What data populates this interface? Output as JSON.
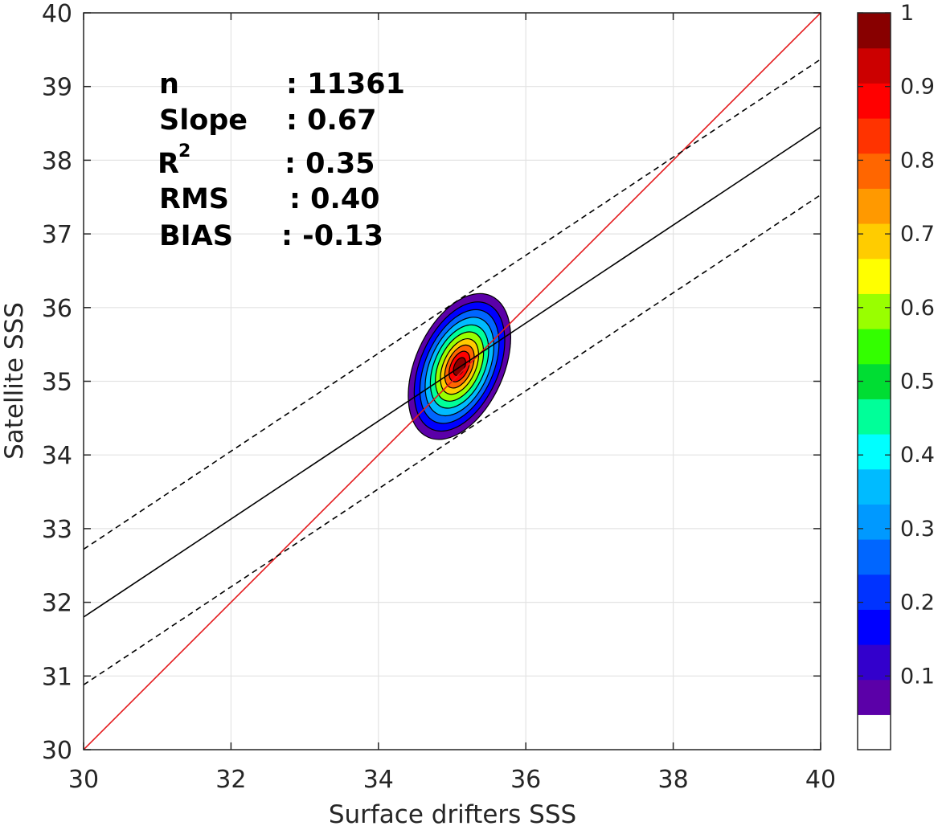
{
  "chart_data": {
    "type": "contour",
    "xlabel": "Surface drifters SSS",
    "ylabel": "Satellite SSS",
    "xlim": [
      30,
      40
    ],
    "ylim": [
      30,
      40
    ],
    "xticks": [
      "30",
      "32",
      "34",
      "36",
      "38",
      "40"
    ],
    "yticks": [
      "30",
      "31",
      "32",
      "33",
      "34",
      "35",
      "36",
      "37",
      "38",
      "39",
      "40"
    ],
    "grid": true,
    "stats": [
      {
        "label": "n",
        "value": ": 11361"
      },
      {
        "label": "Slope",
        "value": ": 0.67"
      },
      {
        "label": "R",
        "sup": "2",
        "value": ": 0.35"
      },
      {
        "label": "RMS",
        "value": ": 0.40"
      },
      {
        "label": "BIAS",
        "value": ": -0.13"
      }
    ],
    "lines": [
      {
        "name": "one-to-one",
        "color": "#e41a1c",
        "style": "solid",
        "x": [
          30,
          40
        ],
        "y": [
          30,
          40
        ]
      },
      {
        "name": "regression",
        "color": "#000000",
        "style": "solid",
        "x": [
          30,
          40
        ],
        "y": [
          31.8,
          38.45
        ]
      },
      {
        "name": "regression-upper",
        "color": "#000000",
        "style": "dashed",
        "x": [
          30,
          40
        ],
        "y": [
          32.72,
          39.37
        ]
      },
      {
        "name": "regression-lower",
        "color": "#000000",
        "style": "dashed",
        "x": [
          30,
          40
        ],
        "y": [
          30.88,
          37.53
        ]
      }
    ],
    "density_center": {
      "x": 35.1,
      "y": 35.2
    },
    "density_levels": [
      {
        "level": 0.05,
        "rx": 0.6,
        "ry": 1.05
      },
      {
        "level": 0.1,
        "rx": 0.53,
        "ry": 0.93
      },
      {
        "level": 0.2,
        "rx": 0.46,
        "ry": 0.82
      },
      {
        "level": 0.3,
        "rx": 0.4,
        "ry": 0.71
      },
      {
        "level": 0.4,
        "rx": 0.34,
        "ry": 0.6
      },
      {
        "level": 0.5,
        "rx": 0.28,
        "ry": 0.5
      },
      {
        "level": 0.6,
        "rx": 0.22,
        "ry": 0.4
      },
      {
        "level": 0.7,
        "rx": 0.17,
        "ry": 0.31
      },
      {
        "level": 0.8,
        "rx": 0.12,
        "ry": 0.22
      },
      {
        "level": 0.9,
        "rx": 0.07,
        "ry": 0.13
      }
    ],
    "colorbar": {
      "ticks": [
        "0.1",
        "0.2",
        "0.3",
        "0.4",
        "0.5",
        "0.6",
        "0.7",
        "0.8",
        "0.9",
        "1"
      ],
      "colors": [
        "#ffffff",
        "#5b00a8",
        "#3300cc",
        "#0000ff",
        "#0033ff",
        "#0066ff",
        "#0099ff",
        "#00bbff",
        "#00ffff",
        "#00ff99",
        "#00dd33",
        "#33ff00",
        "#99ff00",
        "#ffff00",
        "#ffcc00",
        "#ff9900",
        "#ff6600",
        "#ff3300",
        "#ff0000",
        "#cc0000",
        "#880000"
      ]
    }
  }
}
